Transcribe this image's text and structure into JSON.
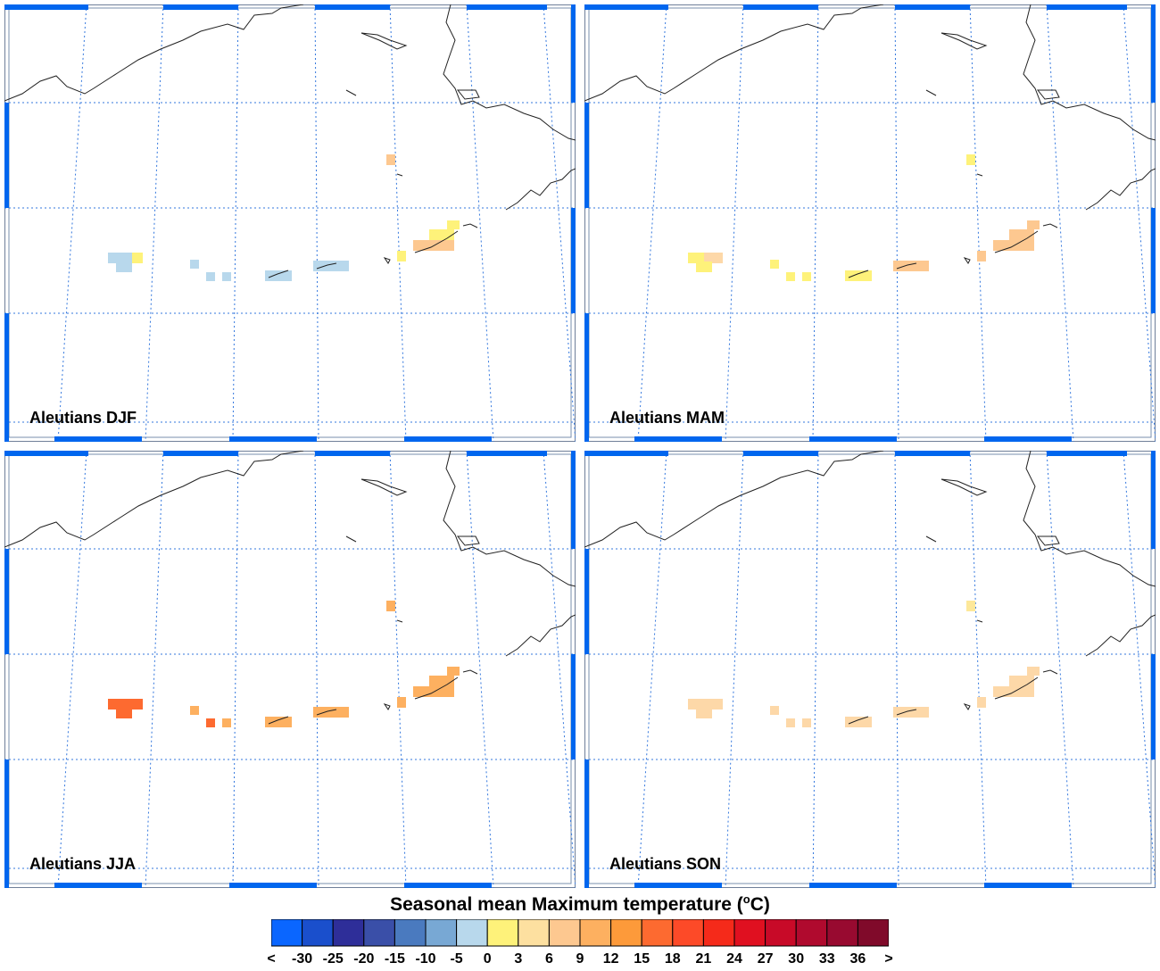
{
  "colors": {
    "frame": "#0066ee",
    "grid": "#3377dd",
    "coast": "#222222"
  },
  "panels": [
    {
      "label": "Aleutians DJF",
      "cells": [
        [
          "light-blue",
          1
        ],
        [
          "light-blue",
          1
        ],
        [
          "light-blue",
          1
        ],
        [
          "yellow",
          1
        ],
        [
          "light-blue",
          1
        ],
        [
          "light-blue",
          1
        ],
        [
          "light-blue",
          1
        ],
        [
          "light-blue",
          1
        ],
        [
          "light-blue",
          1
        ],
        [
          "yellow",
          1
        ],
        [
          "peach",
          1
        ],
        [
          "yellow",
          1
        ],
        [
          "yellow",
          1
        ],
        [
          "peach",
          1
        ]
      ]
    },
    {
      "label": "Aleutians MAM",
      "cells": [
        [
          "yellow",
          1
        ],
        [
          "light-peach",
          1
        ],
        [
          "yellow",
          1
        ],
        [
          "light-peach",
          1
        ],
        [
          "yellow",
          1
        ],
        [
          "yellow",
          1
        ],
        [
          "yellow",
          1
        ],
        [
          "yellow",
          1
        ],
        [
          "peach",
          1
        ],
        [
          "peach",
          1
        ],
        [
          "peach",
          1
        ],
        [
          "peach",
          1
        ],
        [
          "peach",
          1
        ],
        [
          "yellow",
          1
        ]
      ]
    },
    {
      "label": "Aleutians JJA",
      "cells": [
        [
          "orange-red",
          1
        ],
        [
          "orange-red",
          1
        ],
        [
          "orange-red",
          1
        ],
        [
          "orange-red",
          1
        ],
        [
          "orange",
          1
        ],
        [
          "orange-red",
          1
        ],
        [
          "orange",
          1
        ],
        [
          "orange",
          1
        ],
        [
          "orange",
          1
        ],
        [
          "orange",
          1
        ],
        [
          "orange",
          1
        ],
        [
          "orange",
          1
        ],
        [
          "orange",
          1
        ],
        [
          "orange",
          1
        ]
      ]
    },
    {
      "label": "Aleutians SON",
      "cells": [
        [
          "light-peach",
          1
        ],
        [
          "light-peach",
          1
        ],
        [
          "light-peach",
          1
        ],
        [
          "light-peach",
          1
        ],
        [
          "light-peach",
          1
        ],
        [
          "light-peach",
          1
        ],
        [
          "light-peach",
          1
        ],
        [
          "light-peach",
          1
        ],
        [
          "light-peach",
          1
        ],
        [
          "light-peach",
          1
        ],
        [
          "light-peach",
          1
        ],
        [
          "light-peach",
          1
        ],
        [
          "light-peach",
          1
        ],
        [
          "light-yellow",
          1
        ]
      ]
    }
  ],
  "legend": {
    "title_main": "Seasonal mean Maximum temperature (",
    "title_super": "o",
    "title_end": "C)",
    "colors": [
      "#0a66ff",
      "#1a4fcc",
      "#2e2e99",
      "#3a4fa8",
      "#4a7abf",
      "#78a8d4",
      "#b8d8ec",
      "#fef27a",
      "#fde0a0",
      "#fdc890",
      "#fdb060",
      "#fd9a3a",
      "#fd6a30",
      "#fd4a28",
      "#f52a1a",
      "#e01020",
      "#c80a28",
      "#b00a2e",
      "#980a30",
      "#800a2a"
    ],
    "ticks": [
      "<",
      "-30",
      "-25",
      "-20",
      "-15",
      "-10",
      "-5",
      "0",
      "3",
      "6",
      "9",
      "12",
      "15",
      "18",
      "21",
      "24",
      "27",
      "30",
      "33",
      "36",
      ">"
    ]
  },
  "fills": {
    "light-blue": "#b8d8ec",
    "yellow": "#fef27a",
    "light-yellow": "#fde89a",
    "light-peach": "#fdd8a8",
    "peach": "#fdc890",
    "orange": "#fdb060",
    "orange-red": "#fd6a30"
  }
}
